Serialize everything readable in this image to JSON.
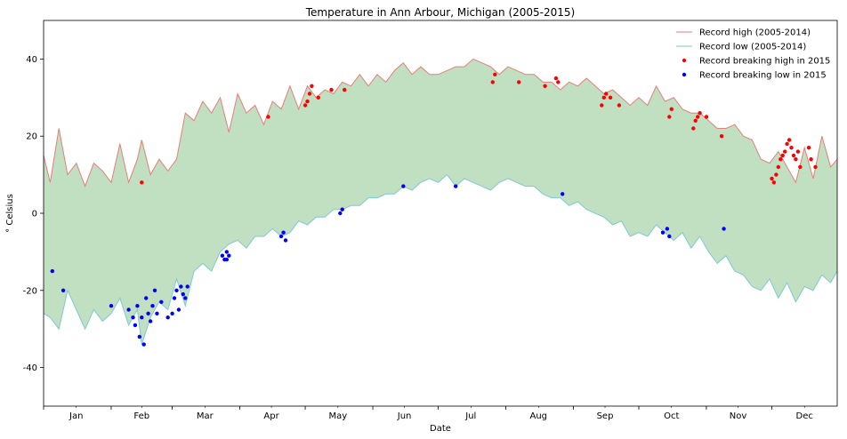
{
  "chart_data": {
    "type": "line",
    "title": "Temperature in Ann Arbour, Michigan (2005-2015)",
    "xlabel": "Date",
    "ylabel": "° Celsius",
    "ylim": [
      -50,
      50
    ],
    "yticks": [
      -40,
      -20,
      0,
      20,
      40
    ],
    "xlim": [
      1,
      365
    ],
    "months": [
      "Jan",
      "Feb",
      "Mar",
      "Apr",
      "May",
      "Jun",
      "Jul",
      "Aug",
      "Sep",
      "Oct",
      "Nov",
      "Dec"
    ],
    "month_starts": [
      1,
      32,
      60,
      91,
      121,
      152,
      182,
      213,
      244,
      274,
      305,
      335
    ],
    "month_centers": [
      16,
      46,
      75,
      105.5,
      136,
      166.5,
      197,
      228,
      258.5,
      289,
      319.5,
      350
    ],
    "grid": false,
    "legend_position": "top-right",
    "fill_between": {
      "color": "#c1dfc1"
    },
    "series": [
      {
        "name": "Record high (2005-2014)",
        "kind": "line",
        "color": "#e57f7a",
        "x": [
          1,
          4,
          8,
          12,
          16,
          20,
          24,
          28,
          32,
          36,
          40,
          44,
          46,
          50,
          54,
          58,
          62,
          66,
          70,
          74,
          78,
          82,
          86,
          90,
          94,
          98,
          102,
          106,
          110,
          114,
          118,
          122,
          126,
          130,
          134,
          138,
          142,
          146,
          150,
          154,
          158,
          162,
          166,
          170,
          174,
          178,
          182,
          186,
          190,
          194,
          198,
          202,
          206,
          210,
          214,
          218,
          222,
          226,
          230,
          234,
          238,
          242,
          246,
          250,
          254,
          258,
          262,
          266,
          270,
          274,
          278,
          282,
          286,
          290,
          294,
          298,
          302,
          306,
          310,
          314,
          318,
          322,
          326,
          330,
          334,
          338,
          342,
          346,
          350,
          354,
          358,
          362,
          365
        ],
        "values": [
          15,
          8,
          22,
          10,
          13,
          7,
          13,
          11,
          8,
          18,
          8,
          14,
          19,
          10,
          14,
          11,
          14,
          26,
          24,
          29,
          26,
          30,
          21,
          31,
          26,
          28,
          23,
          29,
          27,
          33,
          27,
          33,
          30,
          32,
          31,
          34,
          33,
          36,
          33,
          36,
          34,
          37,
          39,
          36,
          38,
          36,
          36,
          37,
          38,
          38,
          40,
          39,
          38,
          36,
          38,
          37,
          36,
          36,
          34,
          34,
          32,
          34,
          33,
          35,
          33,
          31,
          32,
          30,
          28,
          30,
          28,
          33,
          29,
          30,
          27,
          26,
          26,
          24,
          22,
          22,
          23,
          20,
          19,
          14,
          13,
          16,
          12,
          8,
          17,
          9,
          20,
          12,
          14
        ]
      },
      {
        "name": "Record low (2005-2014)",
        "kind": "line",
        "color": "#7ec9d6",
        "x": [
          1,
          4,
          8,
          12,
          16,
          20,
          24,
          28,
          32,
          36,
          40,
          44,
          46,
          50,
          54,
          58,
          62,
          66,
          70,
          74,
          78,
          82,
          86,
          90,
          94,
          98,
          102,
          106,
          110,
          114,
          118,
          122,
          126,
          130,
          134,
          138,
          142,
          146,
          150,
          154,
          158,
          162,
          166,
          170,
          174,
          178,
          182,
          186,
          190,
          194,
          198,
          202,
          206,
          210,
          214,
          218,
          222,
          226,
          230,
          234,
          238,
          242,
          246,
          250,
          254,
          258,
          262,
          266,
          270,
          274,
          278,
          282,
          286,
          290,
          294,
          298,
          302,
          306,
          310,
          314,
          318,
          322,
          326,
          330,
          334,
          338,
          342,
          346,
          350,
          354,
          358,
          362,
          365
        ],
        "values": [
          -26,
          -27,
          -30,
          -20,
          -25,
          -30,
          -25,
          -28,
          -26,
          -22,
          -29,
          -25,
          -34,
          -27,
          -23,
          -25,
          -17,
          -24,
          -15,
          -13,
          -15,
          -10,
          -8,
          -7,
          -9,
          -6,
          -6,
          -4,
          -6,
          -5,
          -2,
          -3,
          -1,
          -1,
          1,
          1,
          2,
          2,
          4,
          4,
          5,
          5,
          7,
          6,
          8,
          9,
          8,
          10,
          7,
          9,
          8,
          7,
          6,
          8,
          9,
          8,
          7,
          7,
          5,
          4,
          4,
          2,
          3,
          1,
          0,
          -1,
          -3,
          -2,
          -6,
          -5,
          -6,
          -3,
          -5,
          -7,
          -5,
          -9,
          -6,
          -10,
          -13,
          -11,
          -15,
          -16,
          -19,
          -20,
          -17,
          -22,
          -18,
          -23,
          -19,
          -20,
          -16,
          -18,
          -15
        ]
      },
      {
        "name": "Record breaking high in 2015",
        "kind": "scatter",
        "color": "#ff0000",
        "x": [
          46,
          104,
          121,
          122,
          123,
          124,
          127,
          133,
          139,
          207,
          208,
          219,
          231,
          236,
          237,
          257,
          258,
          259,
          261,
          265,
          288,
          289,
          299,
          300,
          301,
          302,
          305,
          312,
          335,
          336,
          337,
          338,
          339,
          340,
          341,
          342,
          343,
          344,
          345,
          346,
          347,
          348,
          352,
          353,
          355
        ],
        "values": [
          8,
          25,
          28,
          29,
          31,
          33,
          30,
          32,
          32,
          34,
          36,
          34,
          33,
          35,
          34,
          28,
          30,
          31,
          30,
          28,
          25,
          27,
          22,
          24,
          25,
          26,
          25,
          20,
          9,
          8,
          10,
          12,
          14,
          15,
          16,
          18,
          19,
          17,
          15,
          14,
          16,
          12,
          17,
          14,
          12
        ]
      },
      {
        "name": "Record breaking low in 2015",
        "kind": "scatter",
        "color": "#0000ff",
        "x": [
          5,
          10,
          32,
          40,
          42,
          43,
          44,
          45,
          46,
          47,
          48,
          49,
          50,
          51,
          52,
          53,
          55,
          58,
          60,
          61,
          62,
          63,
          64,
          65,
          66,
          67,
          83,
          84,
          85,
          85,
          86,
          110,
          111,
          112,
          137,
          138,
          166,
          190,
          239,
          285,
          287,
          288,
          313
        ],
        "values": [
          -15,
          -20,
          -24,
          -25,
          -27,
          -29,
          -24,
          -32,
          -27,
          -34,
          -22,
          -26,
          -28,
          -24,
          -20,
          -26,
          -23,
          -27,
          -26,
          -22,
          -20,
          -25,
          -19,
          -21,
          -22,
          -19,
          -11,
          -12,
          -10,
          -12,
          -11,
          -6,
          -5,
          -7,
          0,
          1,
          7,
          7,
          5,
          -5,
          -4,
          -6,
          -4
        ]
      }
    ]
  }
}
